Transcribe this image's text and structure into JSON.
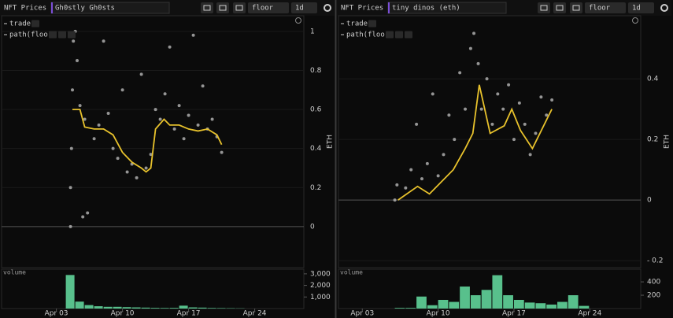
{
  "panels": [
    {
      "app_title": "NFT Prices",
      "collection": "Gh0stly Gh0sts",
      "metric": "floor",
      "interval": "1d"
    },
    {
      "app_title": "NFT Prices",
      "collection": "tiny dinos (eth)",
      "metric": "floor",
      "interval": "1d"
    }
  ],
  "chart_data": [
    {
      "type": "scatter",
      "y_label": "ETH",
      "xlim": [
        -2.8,
        29.2
      ],
      "ylim": [
        -0.21,
        1.08
      ],
      "yticks": [
        0,
        0.2,
        0.4,
        0.6,
        0.8,
        1
      ],
      "series": [
        {
          "name": "trades",
          "type": "scatter",
          "color": "#b8b8b8",
          "x": [
            4.5,
            4.5,
            4.6,
            4.7,
            4.8,
            5,
            5.2,
            5.5,
            6,
            6.3,
            7,
            7.5,
            8,
            8.5,
            9,
            9.5,
            10,
            10.5,
            11,
            11.5,
            12,
            12.5,
            13,
            13.5,
            14,
            14.5,
            15,
            15.5,
            16,
            16.5,
            17,
            17.5,
            18,
            18.5,
            19,
            19.5,
            20,
            20.5,
            5.8
          ],
          "values": [
            0.0,
            0.2,
            0.4,
            0.7,
            0.95,
            1.0,
            0.85,
            0.62,
            0.55,
            0.07,
            0.45,
            0.52,
            0.95,
            0.58,
            0.4,
            0.35,
            0.7,
            0.28,
            0.32,
            0.25,
            0.78,
            0.3,
            0.37,
            0.6,
            0.55,
            0.68,
            0.92,
            0.5,
            0.62,
            0.45,
            0.57,
            0.98,
            0.52,
            0.72,
            0.5,
            0.55,
            0.46,
            0.38,
            0.05
          ]
        },
        {
          "name": "path(floor)",
          "type": "line",
          "color": "#e8c22c",
          "x": [
            4.7,
            5.5,
            6,
            7,
            8,
            9,
            10,
            11,
            12,
            12.5,
            13,
            13.5,
            14.4,
            15,
            16,
            17,
            18,
            19,
            20,
            20.5
          ],
          "values": [
            0.6,
            0.6,
            0.51,
            0.5,
            0.5,
            0.47,
            0.38,
            0.33,
            0.3,
            0.28,
            0.3,
            0.5,
            0.55,
            0.52,
            0.52,
            0.5,
            0.49,
            0.5,
            0.47,
            0.42
          ]
        }
      ]
    },
    {
      "type": "bar",
      "title": "volume",
      "color": "#58c08c",
      "xlim": [
        -2.8,
        29.2
      ],
      "ylim": [
        0,
        3400
      ],
      "yticks": [
        {
          "value": 1000,
          "label": "1,000"
        },
        {
          "value": 2000,
          "label": "2,000"
        },
        {
          "value": 3000,
          "label": "3,000"
        }
      ],
      "xticks": [
        {
          "value": 3,
          "label": "Apr 03"
        },
        {
          "value": 10,
          "label": "Apr 10"
        },
        {
          "value": 17,
          "label": "Apr 17"
        },
        {
          "value": 24,
          "label": "Apr 24"
        }
      ],
      "x": [
        4,
        5,
        6,
        7,
        8,
        9,
        10,
        11,
        12,
        13,
        14,
        15,
        16,
        17,
        18,
        19,
        20,
        21,
        22
      ],
      "values": [
        2900,
        600,
        300,
        200,
        150,
        150,
        120,
        100,
        80,
        60,
        50,
        60,
        250,
        100,
        80,
        50,
        40,
        30,
        20
      ]
    },
    {
      "type": "scatter",
      "y_label": "ETH",
      "xlim": [
        0.8,
        28.7
      ],
      "ylim": [
        -0.223,
        0.608
      ],
      "yticks": [
        {
          "value": -0.2,
          "label": "- 0.2"
        },
        0,
        0.2,
        0.4
      ],
      "series": [
        {
          "name": "trades",
          "type": "scatter",
          "color": "#b8b8b8",
          "x": [
            6,
            6.2,
            7,
            7.5,
            8,
            8.5,
            9,
            9.5,
            10,
            10.5,
            11,
            11.5,
            12,
            12.5,
            13,
            13.3,
            13.7,
            14,
            14.5,
            15,
            15.5,
            16,
            16.5,
            17,
            17.5,
            18,
            18.5,
            19,
            19.5,
            20,
            20.5
          ],
          "values": [
            0,
            0.05,
            0.04,
            0.1,
            0.25,
            0.07,
            0.12,
            0.35,
            0.08,
            0.15,
            0.28,
            0.2,
            0.42,
            0.3,
            0.5,
            0.55,
            0.45,
            0.3,
            0.4,
            0.25,
            0.35,
            0.3,
            0.38,
            0.2,
            0.32,
            0.25,
            0.15,
            0.22,
            0.34,
            0.28,
            0.33
          ]
        },
        {
          "name": "path(floor)",
          "type": "line",
          "color": "#e8c22c",
          "x": [
            6.3,
            8.1,
            9.2,
            11.4,
            12.5,
            13.2,
            13.8,
            14.8,
            16.1,
            16.8,
            17.6,
            18.7,
            20.5
          ],
          "values": [
            0.0,
            0.045,
            0.02,
            0.1,
            0.17,
            0.22,
            0.38,
            0.22,
            0.245,
            0.3,
            0.23,
            0.17,
            0.3
          ]
        }
      ]
    },
    {
      "type": "bar",
      "title": "volume",
      "color": "#58c08c",
      "xlim": [
        0.8,
        28.7
      ],
      "ylim": [
        0,
        590
      ],
      "yticks": [
        200,
        400
      ],
      "xticks": [
        {
          "value": 3,
          "label": "Apr 03"
        },
        {
          "value": 10,
          "label": "Apr 10"
        },
        {
          "value": 17,
          "label": "Apr 17"
        },
        {
          "value": 24,
          "label": "Apr 24"
        }
      ],
      "x": [
        6,
        7,
        8,
        9,
        10,
        11,
        12,
        13,
        14,
        15,
        16,
        17,
        18,
        19,
        20,
        21,
        22,
        23
      ],
      "values": [
        10,
        10,
        180,
        50,
        130,
        100,
        330,
        200,
        280,
        500,
        200,
        130,
        90,
        80,
        60,
        100,
        200,
        40
      ]
    }
  ]
}
